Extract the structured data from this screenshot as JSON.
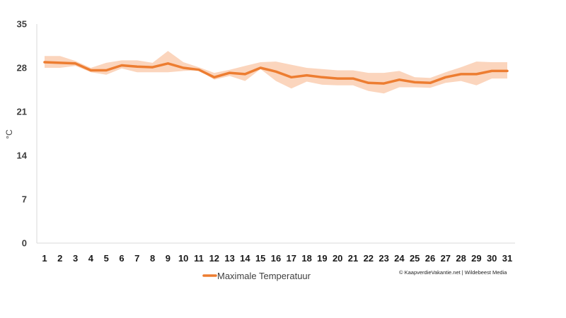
{
  "chart_data": {
    "type": "line",
    "categories": [
      "1",
      "2",
      "3",
      "4",
      "5",
      "6",
      "7",
      "8",
      "9",
      "10",
      "11",
      "12",
      "13",
      "14",
      "15",
      "16",
      "17",
      "18",
      "19",
      "20",
      "21",
      "22",
      "23",
      "24",
      "25",
      "26",
      "27",
      "28",
      "29",
      "30",
      "31"
    ],
    "series": [
      {
        "name": "Maximale Temperatuur",
        "color": "#ed7d31",
        "values": [
          28.9,
          28.8,
          28.7,
          27.6,
          27.6,
          28.4,
          28.2,
          28.1,
          28.7,
          28.0,
          27.7,
          26.5,
          27.2,
          27.0,
          28.0,
          27.4,
          26.5,
          26.8,
          26.5,
          26.3,
          26.3,
          25.6,
          25.5,
          26.1,
          25.7,
          25.6,
          26.5,
          27.0,
          27.0,
          27.5,
          27.5
        ]
      }
    ],
    "range_band": {
      "color": "#fbd5bd",
      "upper": [
        29.9,
        29.9,
        29.1,
        28.0,
        28.8,
        29.2,
        29.2,
        28.8,
        30.7,
        28.9,
        28.1,
        27.2,
        27.7,
        28.3,
        28.9,
        29.0,
        28.5,
        28.0,
        27.8,
        27.6,
        27.6,
        27.2,
        27.2,
        27.5,
        26.5,
        26.4,
        27.3,
        28.1,
        29.0,
        28.9,
        28.9
      ],
      "lower": [
        28.0,
        28.0,
        28.3,
        27.3,
        26.9,
        27.9,
        27.3,
        27.3,
        27.3,
        27.5,
        27.6,
        26.1,
        26.7,
        25.9,
        27.8,
        25.9,
        24.7,
        25.8,
        25.3,
        25.2,
        25.2,
        24.3,
        23.9,
        24.9,
        24.9,
        24.8,
        25.6,
        25.9,
        25.2,
        26.3,
        26.3
      ]
    },
    "title": "",
    "xlabel": "",
    "ylabel": "°C",
    "ylim": [
      0,
      35
    ],
    "yticks": [
      "0",
      "7",
      "14",
      "21",
      "28",
      "35"
    ],
    "grid": false,
    "legend_position": "bottom"
  },
  "credit": "© KaapverdieVakantie.net | Wildebeest Media"
}
